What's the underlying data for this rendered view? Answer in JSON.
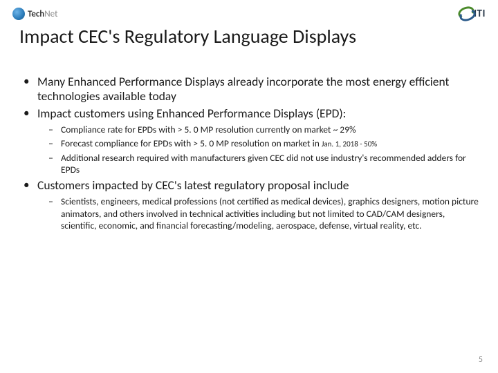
{
  "logos": {
    "left_main": "Tech",
    "left_sub": "Net",
    "right": "ITI"
  },
  "title": "Impact CEC's Regulatory Language Displays",
  "bullets": [
    {
      "text": "Many Enhanced Performance Displays already incorporate the most energy efficient technologies available today",
      "sub": []
    },
    {
      "text": "Impact customers using Enhanced Performance Displays (EPD):",
      "sub": [
        {
          "text": "Compliance rate for EPDs with > 5. 0 MP resolution currently on market ~ 29%"
        },
        {
          "text": "Forecast compliance for EPDs with > 5. 0 MP resolution on market in",
          "tail_small": "Jan. 1, 2018 - 50%"
        },
        {
          "text": "Additional research required with manufacturers given CEC did not use industry's recommended adders for EPDs"
        }
      ]
    },
    {
      "text": "Customers impacted by CEC's latest regulatory proposal include",
      "sub": [
        {
          "text": "Scientists, engineers, medical professions (not certified as medical devices), graphics designers, motion picture animators, and others involved in technical activities including but not limited to CAD/CAM designers, scientific, economic, and financial forecasting/modeling, aerospace, defense, virtual reality, etc."
        }
      ]
    }
  ],
  "page_number": "5",
  "colors": {
    "background": "#ffffff",
    "text": "#1a1a1a",
    "page_num": "#8a8a8a"
  }
}
